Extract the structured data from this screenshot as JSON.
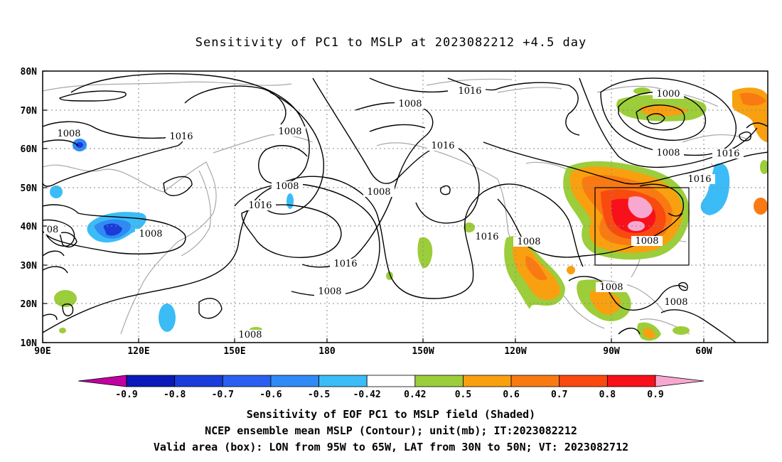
{
  "title": "Sensitivity of PC1 to MSLP at 2023082212 +4.5 day",
  "lat_labels": [
    "80N",
    "70N",
    "60N",
    "50N",
    "40N",
    "30N",
    "20N",
    "10N"
  ],
  "lon_labels": [
    "90E",
    "120E",
    "150E",
    "180",
    "150W",
    "120W",
    "90W",
    "60W"
  ],
  "contour_labels": [
    "1016",
    "1008",
    "1000",
    "1008",
    "1016",
    "1008",
    "1016",
    "1008",
    "1016",
    "1008",
    "1016",
    "1008",
    "1016",
    "1016",
    "1016",
    "1008",
    "1008",
    "1008",
    "1008",
    "1008",
    "08"
  ],
  "colorbar": {
    "labels": [
      "-0.9",
      "-0.8",
      "-0.7",
      "-0.6",
      "-0.5",
      "-0.42",
      "0.42",
      "0.5",
      "0.6",
      "0.7",
      "0.8",
      "0.9"
    ],
    "colors": [
      "#c000a0",
      "#0a1ab8",
      "#1a3cd8",
      "#2a60f0",
      "#2f8af5",
      "#3cbcf7",
      "#ffffff",
      "#9ccd3a",
      "#f9a010",
      "#f97a12",
      "#f94a10",
      "#f8101a",
      "#f8a8d0"
    ]
  },
  "box": {
    "label": "Valid area (box)",
    "lon_from": "95W",
    "lon_to": "65W",
    "lat_from": "30N",
    "lat_to": "50N"
  },
  "captions": [
    "Sensitivity of EOF PC1 to MSLP field (Shaded)",
    "NCEP ensemble mean MSLP (Contour); unit(mb); IT:2023082212",
    "Valid area (box): LON from 95W to 65W, LAT from 30N to 50N; VT: 2023082712"
  ]
}
